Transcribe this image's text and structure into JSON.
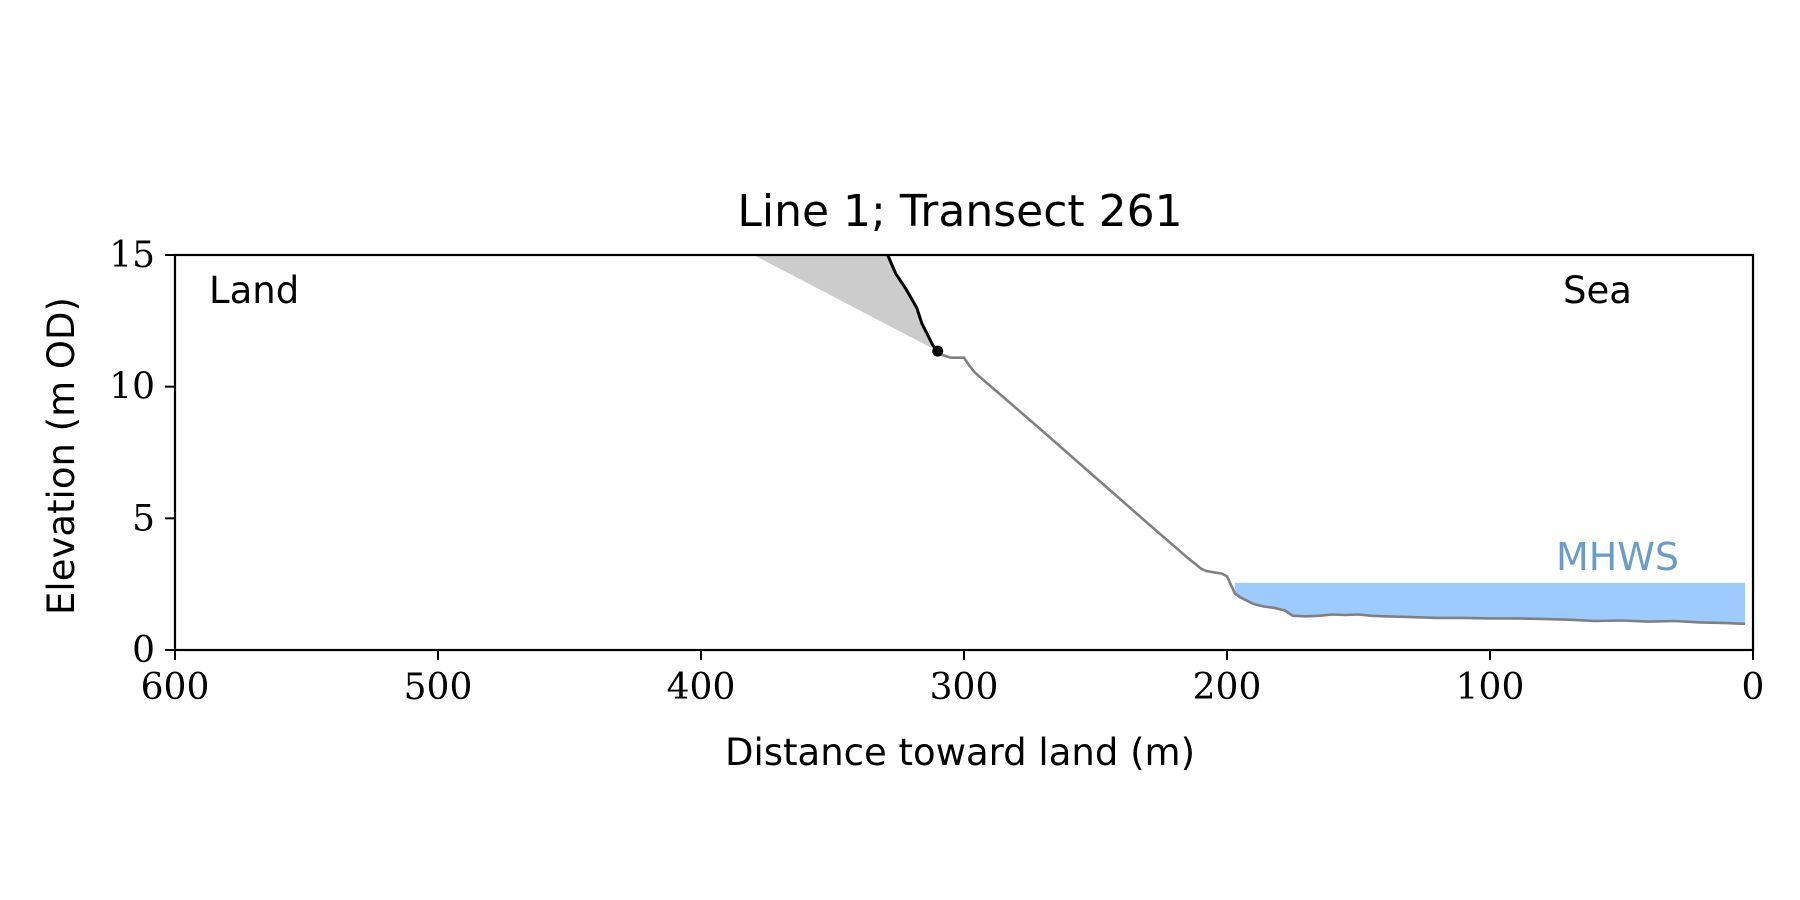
{
  "chart_data": {
    "type": "line",
    "title": "Line 1; Transect 261",
    "xlabel": "Distance toward land (m)",
    "ylabel": "Elevation (m OD)",
    "xlim": [
      600,
      0
    ],
    "x_reversed": true,
    "ylim": [
      0,
      15
    ],
    "x_ticks": [
      600,
      500,
      400,
      300,
      200,
      100,
      0
    ],
    "y_ticks": [
      0,
      5,
      10,
      15
    ],
    "grid": false,
    "legend": "none",
    "annotations": {
      "land": "Land",
      "sea": "Sea",
      "mhws": "MHWS"
    },
    "mhws_level": 2.55,
    "mhws_extent": [
      197,
      3
    ],
    "colors": {
      "profile": "#808080",
      "cliff": "#000000",
      "wedge": "#cccccc",
      "water": "#9ecbff",
      "mhws_label": "#6a9ccb"
    },
    "series": [
      {
        "role": "profile",
        "x": [
          310,
          308,
          305,
          302,
          300,
          298,
          296,
          292,
          285,
          270,
          250,
          230,
          215,
          210,
          208,
          205,
          202,
          200,
          197,
          195,
          190,
          186,
          182,
          178,
          175,
          170,
          165,
          160,
          155,
          150,
          145,
          140,
          130,
          120,
          110,
          100,
          90,
          80,
          70,
          60,
          50,
          40,
          30,
          20,
          10,
          5,
          3
        ],
        "y": [
          11.3,
          11.2,
          11.1,
          11.1,
          11.1,
          10.8,
          10.55,
          10.2,
          9.6,
          8.3,
          6.55,
          4.8,
          3.5,
          3.1,
          3.0,
          2.95,
          2.9,
          2.8,
          2.15,
          2.0,
          1.75,
          1.65,
          1.6,
          1.5,
          1.3,
          1.28,
          1.3,
          1.35,
          1.33,
          1.35,
          1.3,
          1.28,
          1.25,
          1.22,
          1.22,
          1.2,
          1.2,
          1.18,
          1.15,
          1.1,
          1.12,
          1.08,
          1.1,
          1.05,
          1.02,
          1.0,
          1.0
        ]
      },
      {
        "role": "cliff",
        "x": [
          329,
          326,
          322,
          318,
          316,
          314,
          312,
          310
        ],
        "y": [
          15.0,
          14.3,
          13.7,
          13.0,
          12.4,
          12.0,
          11.6,
          11.35
        ]
      }
    ],
    "cliff_toe": [
      310,
      11.35
    ],
    "wedge": {
      "x": [
        380,
        329,
        310
      ],
      "y": [
        15.0,
        15.0,
        11.35
      ]
    }
  }
}
